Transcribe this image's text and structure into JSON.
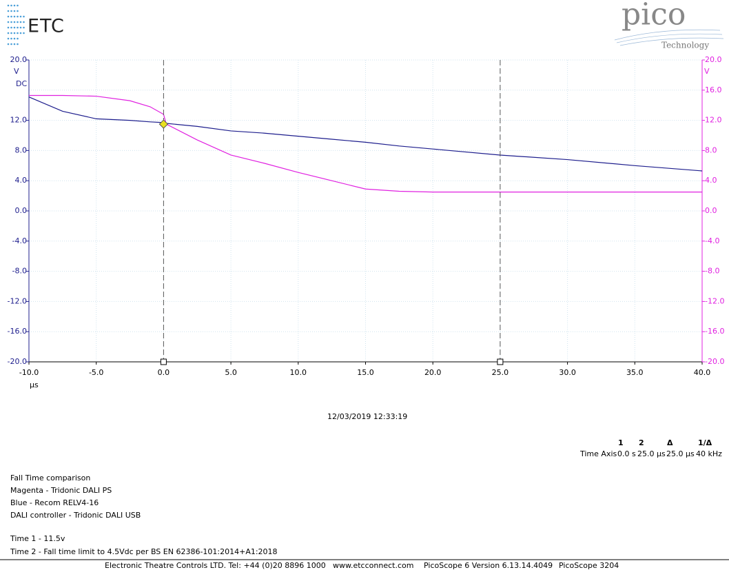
{
  "logos": {
    "left": "ETC",
    "right": "pico",
    "right_sub": "Technology"
  },
  "chart_data": {
    "type": "line",
    "x": [
      -10,
      -7.5,
      -5,
      -2.5,
      -1,
      0,
      0.2,
      2.5,
      5,
      7.5,
      10,
      12.5,
      15,
      17.5,
      20,
      25,
      30,
      35,
      40
    ],
    "series": [
      {
        "color": "#1c1c8c",
        "values": [
          15.1,
          13.2,
          12.2,
          12.0,
          11.8,
          11.7,
          11.6,
          11.2,
          10.6,
          10.3,
          9.9,
          9.5,
          9.1,
          8.6,
          8.2,
          7.4,
          6.8,
          6.0,
          5.3
        ]
      },
      {
        "color": "#e020e0",
        "axis": "y2",
        "values": [
          15.3,
          15.3,
          15.2,
          14.6,
          13.8,
          12.8,
          11.5,
          9.4,
          7.4,
          6.3,
          5.1,
          4.0,
          2.9,
          2.6,
          2.5,
          2.5,
          2.5,
          2.5,
          2.5
        ]
      }
    ],
    "xlim": [
      -10,
      40
    ],
    "xticks": [
      {
        "value": -10,
        "label": "-10.0"
      },
      {
        "value": -5,
        "label": "-5.0"
      },
      {
        "value": 0,
        "label": "0.0"
      },
      {
        "value": 5,
        "label": "5.0"
      },
      {
        "value": 10,
        "label": "10.0"
      },
      {
        "value": 15,
        "label": "15.0"
      },
      {
        "value": 20,
        "label": "20.0"
      },
      {
        "value": 25,
        "label": "25.0"
      },
      {
        "value": 30,
        "label": "30.0"
      },
      {
        "value": 35,
        "label": "35.0"
      },
      {
        "value": 40,
        "label": "40.0"
      }
    ],
    "x_label": "µs",
    "ylim": [
      -20,
      20
    ],
    "yticks": [
      {
        "value": 20,
        "label": "20.0"
      },
      {
        "value": 12,
        "label": "12.0"
      },
      {
        "value": 8,
        "label": "8.0"
      },
      {
        "value": 4,
        "label": "4.0"
      },
      {
        "value": 0,
        "label": "0.0"
      },
      {
        "value": -4,
        "label": "-4.0"
      },
      {
        "value": -8,
        "label": "-8.0"
      },
      {
        "value": -12,
        "label": "-12.0"
      },
      {
        "value": -16,
        "label": "-16.0"
      },
      {
        "value": -20,
        "label": "-20.0"
      }
    ],
    "y_unit": "V",
    "y_coupling": "DC",
    "y2lim": [
      -20,
      20
    ],
    "y2ticks": [
      {
        "value": 20,
        "label": "20.0"
      },
      {
        "value": 16,
        "label": "16.0"
      },
      {
        "value": 12,
        "label": "12.0"
      },
      {
        "value": 8,
        "label": "8.0"
      },
      {
        "value": 4,
        "label": "4.0"
      },
      {
        "value": 0,
        "label": "0.0"
      },
      {
        "value": -4,
        "label": "-4.0"
      },
      {
        "value": -8,
        "label": "-8.0"
      },
      {
        "value": -12,
        "label": "-12.0"
      },
      {
        "value": -16,
        "label": "-16.0"
      },
      {
        "value": -20,
        "label": "-20.0"
      }
    ],
    "y2_unit": "V",
    "grid": true,
    "rulers": [
      0,
      25
    ],
    "marker": {
      "x": 0,
      "y": 11.5,
      "color": "#e8e020"
    }
  },
  "timestamp": "12/03/2019 12:33:19",
  "measurements": {
    "headers": [
      "1",
      "2",
      "Δ",
      "1/Δ"
    ],
    "row_label": "Time Axis",
    "values": [
      "0.0 s",
      "25.0 µs",
      "25.0 µs",
      "40 kHz"
    ]
  },
  "notes": [
    "Fall Time comparison",
    "Magenta - Tridonic DALI PS",
    "Blue - Recom RELV4-16",
    "DALI controller - Tridonic DALI USB",
    "Time 1 - 11.5v",
    "Time 2 - Fall time limit to 4.5Vdc per BS EN 62386-101:2014+A1:2018"
  ],
  "footer": [
    "Electronic Theatre Controls LTD. Tel: +44 (0)20 8896 1000",
    "www.etcconnect.com",
    "PicoScope 6 Version 6.13.14.4049",
    "PicoScope 3204"
  ]
}
